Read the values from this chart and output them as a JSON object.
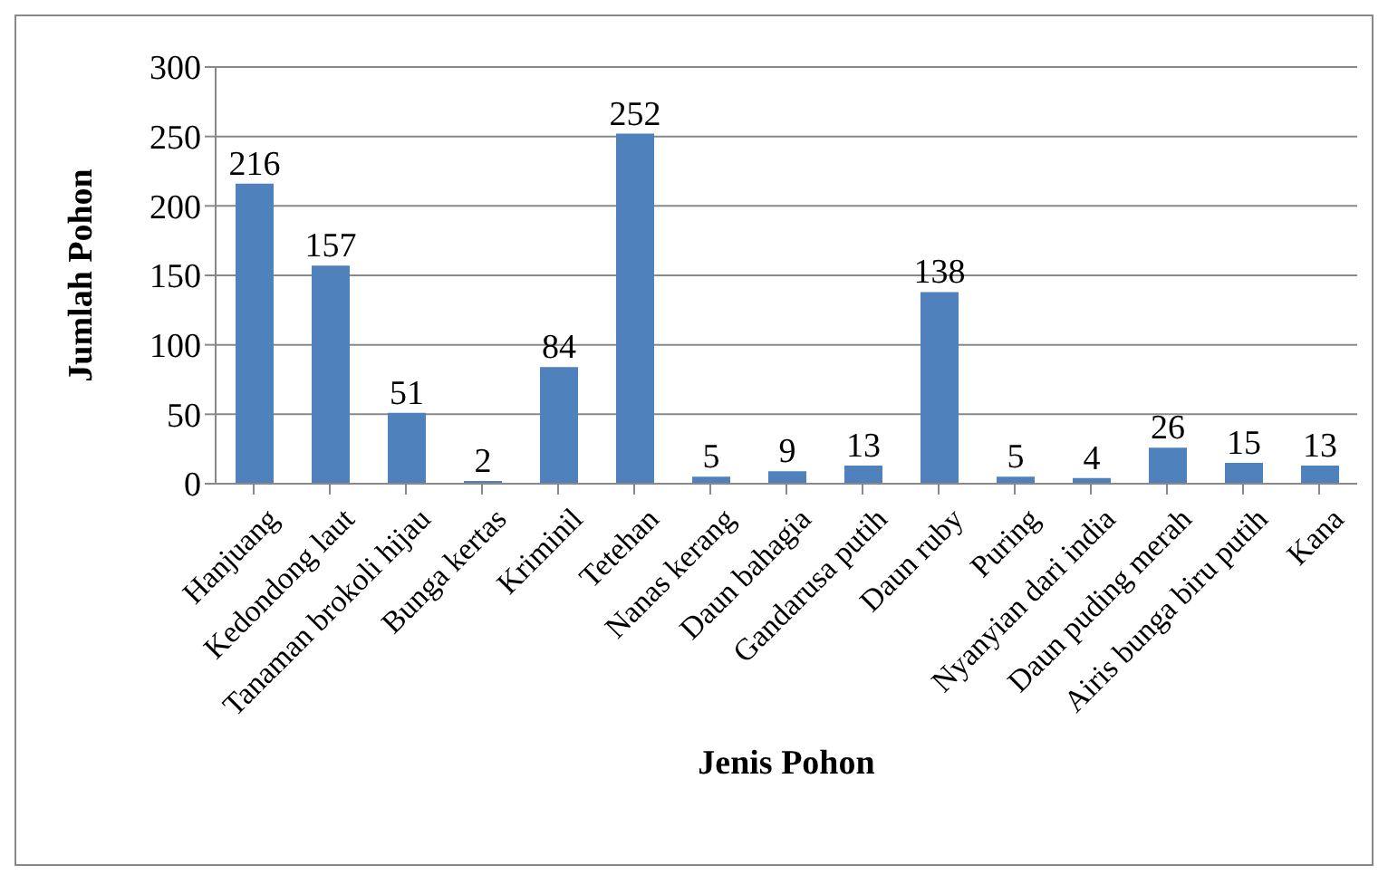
{
  "chart_data": {
    "type": "bar",
    "xlabel": "Jenis Pohon",
    "ylabel": "Jumlah Pohon",
    "categories": [
      "Hanjuang",
      "Kedondong laut",
      "Tanaman brokoli hijau",
      "Bunga kertas",
      "Kriminil",
      "Tetehan",
      "Nanas kerang",
      "Daun bahagia",
      "Gandarusa putih",
      "Daun ruby",
      "Puring",
      "Nyanyian dari india",
      "Daun puding merah",
      "Airis bunga biru putih",
      "Kana"
    ],
    "values": [
      216,
      157,
      51,
      2,
      84,
      252,
      5,
      9,
      13,
      138,
      5,
      4,
      26,
      15,
      13
    ],
    "color": "#4f81bd",
    "ylim": [
      0,
      300
    ],
    "yticks": [
      0,
      50,
      100,
      150,
      200,
      250,
      300
    ],
    "grid": "y",
    "data_labels": true
  }
}
